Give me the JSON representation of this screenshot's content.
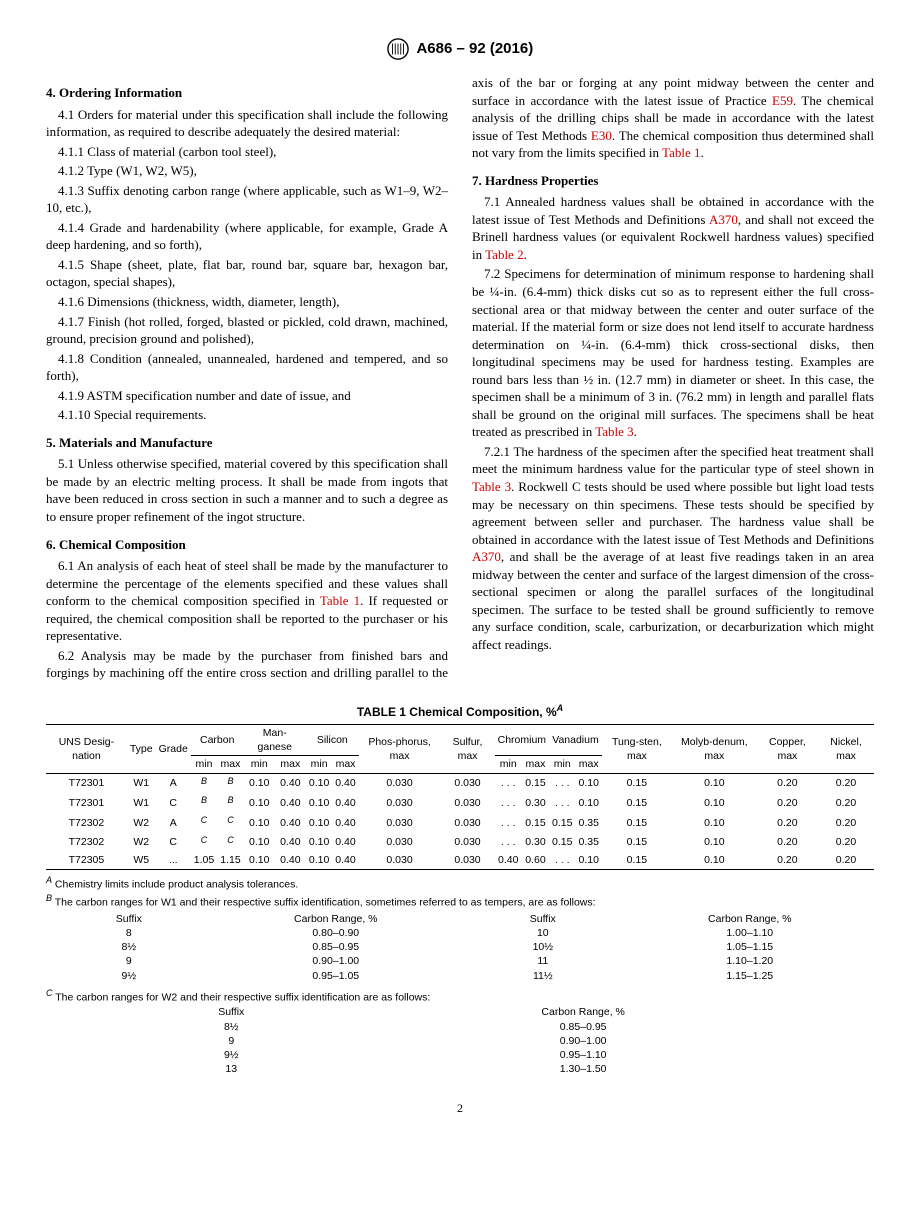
{
  "header": {
    "designation": "A686 – 92 (2016)"
  },
  "sections": {
    "s4": {
      "title": "4.  Ordering Information",
      "p4_1": "4.1 Orders for material under this specification shall include the following information, as required to describe adequately the desired material:",
      "p4_1_1": "4.1.1 Class of material (carbon tool steel),",
      "p4_1_2": "4.1.2 Type (W1, W2, W5),",
      "p4_1_3": "4.1.3 Suffix denoting carbon range (where applicable, such as W1–9, W2–10, etc.),",
      "p4_1_4": "4.1.4 Grade and hardenability (where applicable, for example, Grade A deep hardening, and so forth),",
      "p4_1_5": "4.1.5 Shape (sheet, plate, flat bar, round bar, square bar, hexagon bar, octagon, special shapes),",
      "p4_1_6": "4.1.6 Dimensions (thickness, width, diameter, length),",
      "p4_1_7": "4.1.7 Finish (hot rolled, forged, blasted or pickled, cold drawn, machined, ground, precision ground and polished),",
      "p4_1_8": "4.1.8 Condition (annealed, unannealed, hardened and tempered, and so forth),",
      "p4_1_9": "4.1.9 ASTM specification number and date of issue, and",
      "p4_1_10": "4.1.10 Special requirements."
    },
    "s5": {
      "title": "5.  Materials and Manufacture",
      "p5_1": "5.1 Unless otherwise specified, material covered by this specification shall be made by an electric melting process. It shall be made from ingots that have been reduced in cross section in such a manner and to such a degree as to ensure proper refinement of the ingot structure."
    },
    "s6": {
      "title": "6.  Chemical Composition",
      "p6_1a": "6.1 An analysis of each heat of steel shall be made by the manufacturer to determine the percentage of the elements specified and these values shall conform to the chemical composition specified in ",
      "p6_1_ref": "Table 1",
      "p6_1b": ". If requested or required, the chemical composition shall be reported to the purchaser or his representative.",
      "p6_2a": "6.2 Analysis may be made by the purchaser from finished bars and forgings by machining off the entire cross section and drilling parallel to the axis of the bar or forging at any point midway between the center and surface in accordance with the latest issue of Practice ",
      "p6_2_ref1": "E59",
      "p6_2b": ". The chemical analysis of the drilling chips shall be made in accordance with the latest issue of Test Methods ",
      "p6_2_ref2": "E30",
      "p6_2c": ". The chemical composition thus determined shall not vary from the limits specified in ",
      "p6_2_ref3": "Table 1",
      "p6_2d": "."
    },
    "s7": {
      "title": "7.  Hardness Properties",
      "p7_1a": "7.1 Annealed hardness values shall be obtained in accordance with the latest issue of Test Methods and Definitions ",
      "p7_1_ref1": "A370",
      "p7_1b": ", and shall not exceed the Brinell hardness values (or equivalent Rockwell hardness values) specified in ",
      "p7_1_ref2": "Table 2",
      "p7_1c": ".",
      "p7_2a": "7.2 Specimens for determination of minimum response to hardening shall be ¼-in. (6.4-mm) thick disks cut so as to represent either the full cross-sectional area or that midway between the center and outer surface of the material. If the material form or size does not lend itself to accurate hardness determination on ¼-in. (6.4-mm) thick cross-sectional disks, then longitudinal specimens may be used for hardness testing. Examples are round bars less than ½ in. (12.7 mm) in diameter or sheet. In this case, the specimen shall be a minimum of 3 in. (76.2 mm) in length and parallel flats shall be ground on the original mill surfaces. The specimens shall be heat treated as prescribed in ",
      "p7_2_ref": "Table 3",
      "p7_2b": ".",
      "p7_2_1a": "7.2.1 The hardness of the specimen after the specified heat treatment shall meet the minimum hardness value for the particular type of steel shown in ",
      "p7_2_1_ref1": "Table 3",
      "p7_2_1b": ". Rockwell C tests should be used where possible but light load tests may be necessary on thin specimens. These tests should be specified by agreement between seller and purchaser. The hardness value shall be obtained in accordance with the latest issue of Test Methods and Definitions ",
      "p7_2_1_ref2": "A370",
      "p7_2_1c": ", and shall be the average of at least five readings taken in an area midway between the center and surface of the largest dimension of the cross-sectional specimen or along the parallel surfaces of the longitudinal specimen. The surface to be tested shall be ground sufficiently to remove any surface condition, scale, carburization, or decarburization which might affect readings."
    }
  },
  "table1": {
    "caption": "TABLE 1 Chemical Composition, %",
    "caption_sup": "A",
    "headers": {
      "uns": "UNS Desig-nation",
      "type": "Type",
      "grade": "Grade",
      "carbon": "Carbon",
      "mn": "Man-ganese",
      "si": "Silicon",
      "p": "Phos-phorus, max",
      "s": "Sulfur, max",
      "cr": "Chromium",
      "v": "Vanadium",
      "w": "Tung-sten, max",
      "mo": "Molyb-denum, max",
      "cu": "Copper, max",
      "ni": "Nickel, max",
      "min": "min",
      "max": "max"
    },
    "rows": [
      {
        "uns": "T72301",
        "type": "W1",
        "grade": "A",
        "c_min": "B",
        "c_max": "B",
        "mn_min": "0.10",
        "mn_max": "0.40",
        "si_min": "0.10",
        "si_max": "0.40",
        "p": "0.030",
        "s": "0.030",
        "cr_min": ". . .",
        "cr_max": "0.15",
        "v_min": ". . .",
        "v_max": "0.10",
        "w": "0.15",
        "mo": "0.10",
        "cu": "0.20",
        "ni": "0.20"
      },
      {
        "uns": "T72301",
        "type": "W1",
        "grade": "C",
        "c_min": "B",
        "c_max": "B",
        "mn_min": "0.10",
        "mn_max": "0.40",
        "si_min": "0.10",
        "si_max": "0.40",
        "p": "0.030",
        "s": "0.030",
        "cr_min": ". . .",
        "cr_max": "0.30",
        "v_min": ". . .",
        "v_max": "0.10",
        "w": "0.15",
        "mo": "0.10",
        "cu": "0.20",
        "ni": "0.20"
      },
      {
        "uns": "T72302",
        "type": "W2",
        "grade": "A",
        "c_min": "C",
        "c_max": "C",
        "mn_min": "0.10",
        "mn_max": "0.40",
        "si_min": "0.10",
        "si_max": "0.40",
        "p": "0.030",
        "s": "0.030",
        "cr_min": ". . .",
        "cr_max": "0.15",
        "v_min": "0.15",
        "v_max": "0.35",
        "w": "0.15",
        "mo": "0.10",
        "cu": "0.20",
        "ni": "0.20"
      },
      {
        "uns": "T72302",
        "type": "W2",
        "grade": "C",
        "c_min": "C",
        "c_max": "C",
        "mn_min": "0.10",
        "mn_max": "0.40",
        "si_min": "0.10",
        "si_max": "0.40",
        "p": "0.030",
        "s": "0.030",
        "cr_min": ". . .",
        "cr_max": "0.30",
        "v_min": "0.15",
        "v_max": "0.35",
        "w": "0.15",
        "mo": "0.10",
        "cu": "0.20",
        "ni": "0.20"
      },
      {
        "uns": "T72305",
        "type": "W5",
        "grade": "...",
        "c_min": "1.05",
        "c_max": "1.15",
        "mn_min": "0.10",
        "mn_max": "0.40",
        "si_min": "0.10",
        "si_max": "0.40",
        "p": "0.030",
        "s": "0.030",
        "cr_min": "0.40",
        "cr_max": "0.60",
        "v_min": ". . .",
        "v_max": "0.10",
        "w": "0.15",
        "mo": "0.10",
        "cu": "0.20",
        "ni": "0.20"
      }
    ]
  },
  "footnotes": {
    "a": " Chemistry limits include product analysis tolerances.",
    "b": " The carbon ranges for W1 and their respective suffix identification, sometimes referred to as tempers, are as follows:",
    "c": " The carbon ranges for W2 and their respective suffix identification are as follows:"
  },
  "suffix_b": {
    "headers": {
      "suffix": "Suffix",
      "range": "Carbon Range, %"
    },
    "left": [
      {
        "s": "8",
        "r": "0.80–0.90"
      },
      {
        "s": "8½",
        "r": "0.85–0.95"
      },
      {
        "s": "9",
        "r": "0.90–1.00"
      },
      {
        "s": "9½",
        "r": "0.95–1.05"
      }
    ],
    "right": [
      {
        "s": "10",
        "r": "1.00–1.10"
      },
      {
        "s": "10½",
        "r": "1.05–1.15"
      },
      {
        "s": "11",
        "r": "1.10–1.20"
      },
      {
        "s": "11½",
        "r": "1.15–1.25"
      }
    ]
  },
  "suffix_c": {
    "headers": {
      "suffix": "Suffix",
      "range": "Carbon Range, %"
    },
    "rows": [
      {
        "s": "8½",
        "r": "0.85–0.95"
      },
      {
        "s": "9",
        "r": "0.90–1.00"
      },
      {
        "s": "9½",
        "r": "0.95–1.10"
      },
      {
        "s": "13",
        "r": "1.30–1.50"
      }
    ]
  },
  "page": "2"
}
